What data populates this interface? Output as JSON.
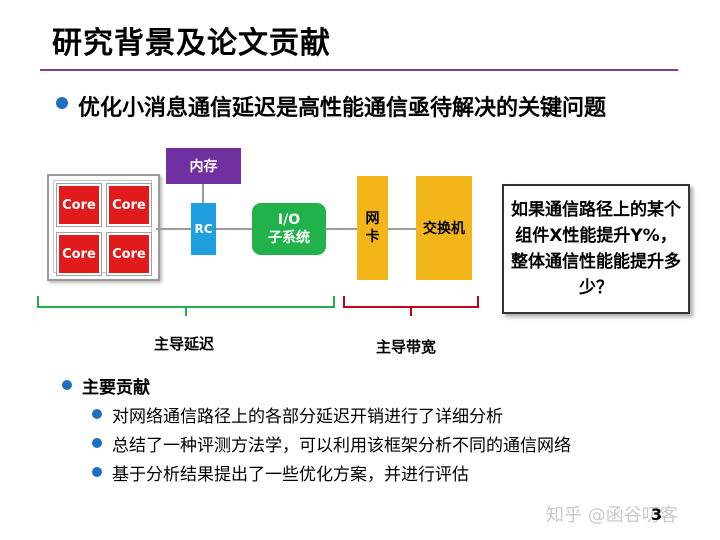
{
  "title": "研究背景及论文贡献",
  "headline": "优化小消息通信延迟是高性能通信亟待解决的关键问题",
  "diagram": {
    "cores": [
      "Core",
      "Core",
      "Core",
      "Core"
    ],
    "memory": "内存",
    "rc": "RC",
    "io_line1": "I/O",
    "io_line2": "子系统",
    "nic_line1": "网",
    "nic_line2": "卡",
    "switch": "交换机",
    "brace_latency": "主导延迟",
    "brace_bandwidth": "主导带宽",
    "colors": {
      "core": "#e11b1b",
      "memory": "#7030a0",
      "rc": "#1ea0e0",
      "io": "#21b24b",
      "nic_switch": "#f2b619",
      "latency_brace": "#21b24b",
      "bandwidth_brace": "#c0001c"
    }
  },
  "question": "如果通信路径上的某个组件X性能提升Y%，整体通信性能能提升多少？",
  "contributions": {
    "heading": "主要贡献",
    "items": [
      "对网络通信路径上的各部分延迟开销进行了详细分析",
      "总结了一种评测方法学，可以利用该框架分析不同的通信网络",
      "基于分析结果提出了一些优化方案，并进行评估"
    ]
  },
  "watermark": "知乎 @函谷叨客",
  "page_number": "3"
}
